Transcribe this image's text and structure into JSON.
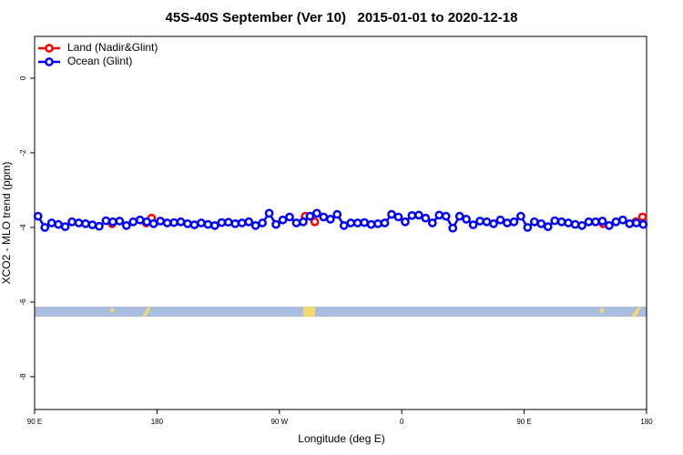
{
  "chart_data": {
    "type": "line",
    "title": "45S-40S September (Ver 10)   2015-01-01 to 2020-12-18",
    "xlabel": "Longitude (deg E)",
    "ylabel": "XCO2 - MLO trend (ppm)",
    "xlim": [
      90,
      540
    ],
    "xticks": [
      {
        "value": 90,
        "label": "90 E"
      },
      180,
      {
        "value": 270,
        "label": "90 W"
      },
      {
        "value": 360,
        "label": "0"
      },
      {
        "value": 450,
        "label": "90 E"
      },
      {
        "value": 540,
        "label": "180"
      }
    ],
    "ylim": [
      -8.88,
      1.12
    ],
    "yticks": [
      0,
      -2,
      -4,
      -6,
      -8
    ],
    "legend": "top-left",
    "series": [
      {
        "name": "Land (Nadir&Glint)",
        "color": "#ff0000",
        "x": [
          147,
          null,
          172,
          176,
          null,
          289,
          296,
          null,
          508,
          null,
          532,
          537
        ],
        "values": [
          -3.9,
          null,
          -3.88,
          -3.75,
          null,
          -3.7,
          -3.85,
          null,
          -3.9,
          null,
          -3.85,
          -3.72
        ]
      },
      {
        "name": "Ocean (Glint)",
        "color": "#0000ff",
        "x": [
          92.5,
          97.5,
          102.5,
          107.5,
          112.5,
          117.5,
          122.5,
          127.5,
          132.5,
          137.5,
          142.5,
          147.5,
          152.5,
          157.5,
          162.5,
          167.5,
          172.5,
          177.5,
          182.5,
          187.5,
          192.5,
          197.5,
          202.5,
          207.5,
          212.5,
          217.5,
          222.5,
          227.5,
          232.5,
          237.5,
          242.5,
          247.5,
          252.5,
          257.5,
          262.5,
          267.5,
          272.5,
          277.5,
          282.5,
          287.5,
          292.5,
          297.5,
          302.5,
          307.5,
          312.5,
          317.5,
          322.5,
          327.5,
          332.5,
          337.5,
          342.5,
          347.5,
          352.5,
          357.5,
          362.5,
          367.5,
          372.5,
          377.5,
          382.5,
          387.5,
          392.5,
          397.5,
          402.5,
          407.5,
          412.5,
          417.5,
          422.5,
          427.5,
          432.5,
          437.5,
          442.5,
          447.5,
          452.5,
          457.5,
          462.5,
          467.5,
          472.5,
          477.5,
          482.5,
          487.5,
          492.5,
          497.5,
          502.5,
          507.5,
          512.5,
          517.5,
          522.5,
          527.5,
          532.5,
          537.5
        ],
        "values": [
          -3.7,
          -4.0,
          -3.88,
          -3.92,
          -3.98,
          -3.85,
          -3.88,
          -3.9,
          -3.93,
          -3.97,
          -3.82,
          -3.85,
          -3.83,
          -3.95,
          -3.85,
          -3.8,
          -3.85,
          -3.9,
          -3.83,
          -3.88,
          -3.87,
          -3.85,
          -3.9,
          -3.93,
          -3.88,
          -3.92,
          -3.95,
          -3.87,
          -3.86,
          -3.9,
          -3.88,
          -3.85,
          -3.95,
          -3.88,
          -3.62,
          -3.92,
          -3.8,
          -3.72,
          -3.88,
          -3.85,
          -3.7,
          -3.62,
          -3.72,
          -3.78,
          -3.65,
          -3.95,
          -3.88,
          -3.88,
          -3.87,
          -3.92,
          -3.9,
          -3.88,
          -3.65,
          -3.72,
          -3.85,
          -3.68,
          -3.67,
          -3.75,
          -3.88,
          -3.67,
          -3.7,
          -4.02,
          -3.7,
          -3.78,
          -3.93,
          -3.83,
          -3.85,
          -3.9,
          -3.8,
          -3.88,
          -3.85,
          -3.7,
          -4.0,
          -3.85,
          -3.9,
          -3.98,
          -3.82,
          -3.85,
          -3.88,
          -3.92,
          -3.95,
          -3.85,
          -3.85,
          -3.83,
          -3.95,
          -3.85,
          -3.8,
          -3.9,
          -3.88,
          -3.92
        ]
      }
    ]
  }
}
